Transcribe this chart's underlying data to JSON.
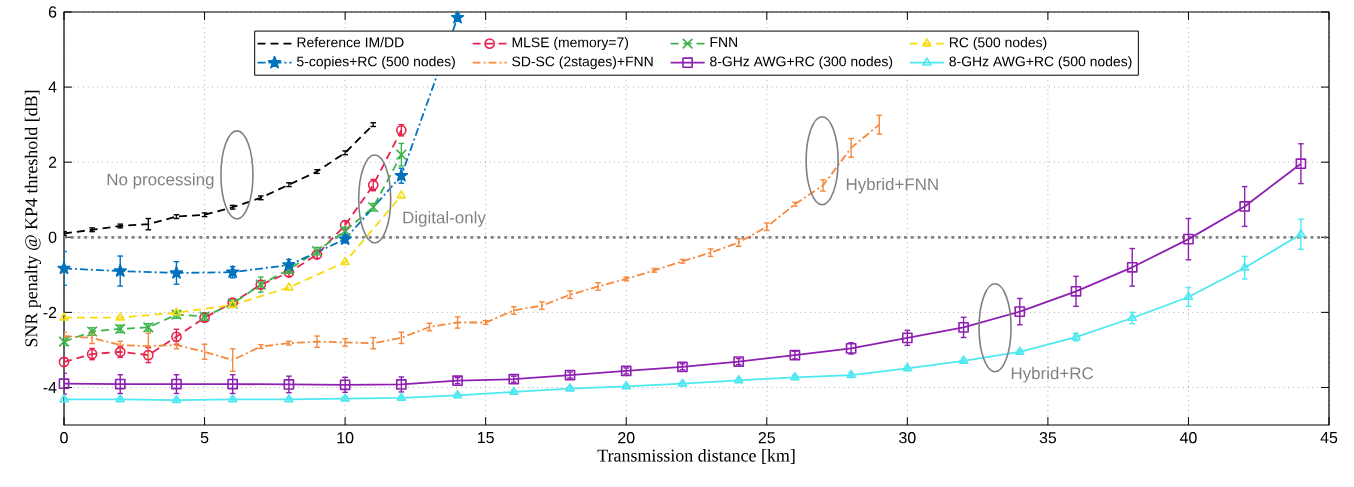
{
  "chart_data": {
    "type": "line",
    "xlabel": "Transmission distance [km]",
    "ylabel": "SNR penalty @ KP4 threshold [dB]",
    "xlim": [
      0,
      45
    ],
    "ylim": [
      -5,
      6
    ],
    "xticks": [
      0,
      5,
      10,
      15,
      20,
      25,
      30,
      35,
      40,
      45
    ],
    "yticks": [
      -4,
      -2,
      0,
      2,
      4,
      6
    ],
    "grid": true,
    "legend": "top",
    "ref_lines": [
      {
        "axis": "y",
        "value": 0,
        "color": "#808080",
        "line_style": "dotted"
      }
    ],
    "annotations": [
      "No processing",
      "Digital-only",
      "Hybrid+FNN",
      "Hybrid+RC"
    ],
    "series": [
      {
        "name": "Reference IM/DD",
        "color": "#000000",
        "marker": "none",
        "line_style": "dashed",
        "x": [
          0,
          1,
          2,
          3,
          4,
          5,
          6,
          7,
          8,
          9,
          10,
          11
        ],
        "values": [
          0.1,
          0.2,
          0.3,
          0.35,
          0.55,
          0.6,
          0.8,
          1.05,
          1.4,
          1.75,
          2.25,
          3.0
        ],
        "errors": [
          0.05,
          0.05,
          0.05,
          0.15,
          0.05,
          0.05,
          0.05,
          0.05,
          0.05,
          0.05,
          0.05,
          0.05
        ]
      },
      {
        "name": "MLSE (memory=7)",
        "color": "#e8224f",
        "marker": "circle",
        "line_style": "dashed",
        "x": [
          0,
          1,
          2,
          3,
          4,
          5,
          6,
          7,
          8,
          9,
          10,
          11,
          12
        ],
        "values": [
          -3.32,
          -3.11,
          -3.05,
          -3.14,
          -2.65,
          -2.14,
          -1.74,
          -1.26,
          -0.94,
          -0.46,
          0.32,
          1.39,
          2.85
        ],
        "errors": [
          0.1,
          0.15,
          0.15,
          0.2,
          0.2,
          0.1,
          0.1,
          0.1,
          0.1,
          0.1,
          0.12,
          0.15,
          0.15
        ]
      },
      {
        "name": "FNN",
        "color": "#3cb44b",
        "marker": "cross",
        "line_style": "dashed",
        "x": [
          0,
          1,
          2,
          3,
          4,
          5,
          6,
          7,
          8,
          9,
          10,
          11,
          12
        ],
        "values": [
          -2.78,
          -2.51,
          -2.44,
          -2.4,
          -2.06,
          -2.11,
          -1.77,
          -1.26,
          -0.86,
          -0.37,
          0.17,
          0.8,
          2.2
        ],
        "errors": [
          0.1,
          0.1,
          0.1,
          0.1,
          0.1,
          0.1,
          0.1,
          0.2,
          0.1,
          0.1,
          0.1,
          0.1,
          0.3
        ]
      },
      {
        "name": "RC (500 nodes)",
        "color": "#f5dc10",
        "marker": "triangle",
        "line_style": "dashed",
        "x": [
          0,
          2,
          4,
          6,
          8,
          10,
          12
        ],
        "values": [
          -2.14,
          -2.14,
          -2.01,
          -1.8,
          -1.34,
          -0.66,
          1.11
        ]
      },
      {
        "name": "5-copies+RC (500 nodes)",
        "color": "#0072bd",
        "marker": "star",
        "line_style": "dashdot",
        "x": [
          0,
          2,
          4,
          6,
          8,
          10,
          12,
          14
        ],
        "values": [
          -0.83,
          -0.9,
          -0.95,
          -0.93,
          -0.74,
          -0.05,
          1.64,
          5.85
        ],
        "errors": [
          0.45,
          0.4,
          0.3,
          0.15,
          0.15,
          0.1,
          0.2,
          0.1
        ]
      },
      {
        "name": "SD-SC (2stages)+FNN",
        "color": "#f5883a",
        "marker": "none",
        "line_style": "dashdot",
        "x": [
          0,
          1,
          2,
          3,
          4,
          5,
          6,
          7,
          8,
          9,
          10,
          11,
          12,
          13,
          14,
          15,
          16,
          17,
          18,
          19,
          20,
          21,
          22,
          23,
          24,
          25,
          26,
          27,
          28,
          29
        ],
        "values": [
          -2.63,
          -2.68,
          -2.87,
          -2.9,
          -2.87,
          -3.05,
          -3.27,
          -2.91,
          -2.82,
          -2.78,
          -2.8,
          -2.82,
          -2.68,
          -2.39,
          -2.27,
          -2.27,
          -1.95,
          -1.82,
          -1.53,
          -1.31,
          -1.11,
          -0.88,
          -0.64,
          -0.41,
          -0.14,
          0.28,
          0.88,
          1.38,
          2.38,
          3.0
        ],
        "errors": [
          0.1,
          0.15,
          0.1,
          0.35,
          0.1,
          0.2,
          0.3,
          0.05,
          0.05,
          0.15,
          0.1,
          0.15,
          0.15,
          0.1,
          0.15,
          0.05,
          0.1,
          0.1,
          0.1,
          0.1,
          0.05,
          0.05,
          0.05,
          0.1,
          0.1,
          0.1,
          0.05,
          0.15,
          0.25,
          0.25
        ]
      },
      {
        "name": "8-GHz AWG+RC (300 nodes)",
        "color": "#8e1fb0",
        "marker": "square",
        "line_style": "solid",
        "x": [
          0,
          2,
          4,
          6,
          8,
          10,
          12,
          14,
          16,
          18,
          20,
          22,
          24,
          26,
          28,
          30,
          32,
          34,
          36,
          38,
          40,
          42,
          44
        ],
        "values": [
          -3.9,
          -3.91,
          -3.91,
          -3.91,
          -3.92,
          -3.93,
          -3.92,
          -3.82,
          -3.78,
          -3.67,
          -3.56,
          -3.45,
          -3.31,
          -3.14,
          -2.96,
          -2.68,
          -2.4,
          -1.98,
          -1.44,
          -0.8,
          -0.05,
          0.82,
          1.96
        ],
        "errors": [
          0.28,
          0.25,
          0.25,
          0.25,
          0.22,
          0.2,
          0.2,
          0.08,
          0.08,
          0.08,
          0.08,
          0.08,
          0.08,
          0.1,
          0.15,
          0.2,
          0.27,
          0.35,
          0.4,
          0.5,
          0.55,
          0.53,
          0.53
        ]
      },
      {
        "name": "8-GHz AWG+RC (500 nodes)",
        "color": "#4de8f0",
        "marker": "triangle",
        "line_style": "solid",
        "x": [
          0,
          2,
          4,
          6,
          8,
          10,
          12,
          14,
          16,
          18,
          20,
          22,
          24,
          26,
          28,
          30,
          32,
          34,
          36,
          38,
          40,
          42,
          44
        ],
        "values": [
          -4.32,
          -4.32,
          -4.34,
          -4.32,
          -4.32,
          -4.3,
          -4.28,
          -4.21,
          -4.12,
          -4.03,
          -3.97,
          -3.9,
          -3.81,
          -3.73,
          -3.67,
          -3.49,
          -3.29,
          -3.05,
          -2.66,
          -2.15,
          -1.59,
          -0.81,
          0.08
        ],
        "errors": [
          0.05,
          0.05,
          0.05,
          0.05,
          0.05,
          0.05,
          0.05,
          0.05,
          0.05,
          0.05,
          0.05,
          0.05,
          0.05,
          0.05,
          0.05,
          0.05,
          0.05,
          0.05,
          0.1,
          0.15,
          0.25,
          0.3,
          0.4
        ]
      }
    ]
  }
}
